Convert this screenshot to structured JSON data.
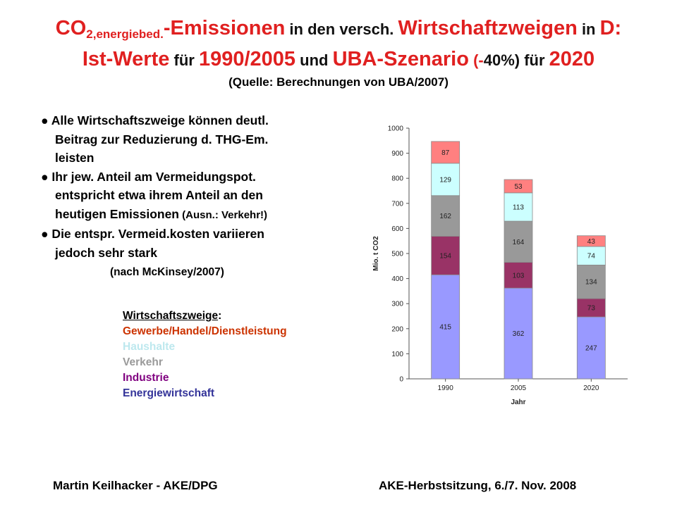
{
  "title": {
    "line1": {
      "co": "CO",
      "sub": "2,energiebed.",
      "a": "-Emissionen",
      "b": " in den versch. ",
      "c": "Wirtschaftzweigen",
      "d": " in ",
      "e": "D:"
    },
    "line2": {
      "a": "Ist-Werte",
      "b": " für ",
      "c": "1990/2005",
      "d": " und ",
      "e": "UBA-Szenario",
      "f": " (-",
      "g": "40%)",
      "h": " für ",
      "i": "2020"
    },
    "source": "(Quelle: Berechnungen von UBA/2007)"
  },
  "bullets": {
    "b1_l1": "● Alle Wirtschaftszweige können deutl.",
    "b1_l2": "Beitrag zur Reduzierung d. THG-Em.",
    "b1_l3": "leisten",
    "b2_l1": "● Ihr jew. Anteil am Vermeidungspot.",
    "b2_l2": "entspricht etwa ihrem Anteil an den",
    "b2_l3a": "heutigen Emissionen",
    "b2_l3b": " (Ausn.: Verkehr!)",
    "b3_l1": "● Die entspr. Vermeid.kosten variieren",
    "b3_l2": "jedoch sehr stark",
    "citation": "(nach McKinsey/2007)"
  },
  "legend": {
    "title": "Wirtschaftszweige",
    "colon": ":",
    "items": [
      {
        "label": "Gewerbe/Handel/Dienstleistung",
        "color": "#cc3300"
      },
      {
        "label": "Haushalte",
        "color": "#bde8ee"
      },
      {
        "label": "Verkehr",
        "color": "#9a9a9a"
      },
      {
        "label": "Industrie",
        "color": "#800080"
      },
      {
        "label": "Energiewirtschaft",
        "color": "#333399"
      }
    ]
  },
  "chart_data": {
    "type": "bar",
    "stacked": true,
    "categories": [
      "1990",
      "2005",
      "2020"
    ],
    "series": [
      {
        "key": "energie",
        "values": [
          415,
          362,
          247
        ],
        "color": "#9999ff"
      },
      {
        "key": "industrie",
        "values": [
          154,
          103,
          73
        ],
        "color": "#993366"
      },
      {
        "key": "verkehr",
        "values": [
          162,
          164,
          134
        ],
        "color": "#999999"
      },
      {
        "key": "haushalte",
        "values": [
          129,
          113,
          74
        ],
        "color": "#ccffff"
      },
      {
        "key": "gewerbe",
        "values": [
          87,
          53,
          43
        ],
        "color": "#ff8080"
      }
    ],
    "ylabel": "Mio. t  CO2",
    "xlabel": "Jahr",
    "ylim": [
      0,
      1000
    ],
    "yticks": [
      0,
      100,
      200,
      300,
      400,
      500,
      600,
      700,
      800,
      900,
      1000
    ],
    "grid": false
  },
  "footer": {
    "left": "Martin Keilhacker - AKE/DPG",
    "right": "AKE-Herbstsitzung, 6./7. Nov. 2008"
  }
}
